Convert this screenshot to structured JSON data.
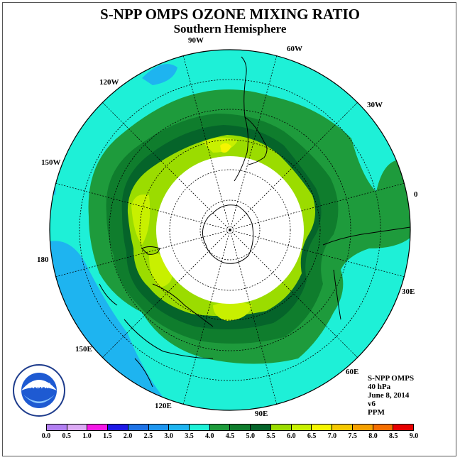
{
  "title": "S-NPP OMPS OZONE MIXING RATIO",
  "subtitle": "Southern Hemisphere",
  "longitude_labels": {
    "w90": "90W",
    "w60": "60W",
    "w30": "30W",
    "w120": "120W",
    "w150": "150W",
    "zero": "0",
    "lon180": "180",
    "e30": "30E",
    "e60": "60E",
    "e90": "90E",
    "e120": "120E",
    "e150": "150E"
  },
  "info": {
    "product": "S-NPP OMPS",
    "level": "40 hPa",
    "date": "June 8, 2014",
    "version": "v6",
    "units": "PPM"
  },
  "logo": {
    "text": "NOAA",
    "ring_text": "NATIONAL OCEANIC AND ATMOSPHERIC ADMINISTRATION · U.S. DEPARTMENT OF COMMERCE"
  },
  "colorbar": {
    "labels": [
      "0.0",
      "0.5",
      "1.0",
      "1.5",
      "2.0",
      "2.5",
      "3.0",
      "3.5",
      "4.0",
      "4.5",
      "5.0",
      "5.5",
      "6.0",
      "6.5",
      "7.0",
      "7.5",
      "8.0",
      "8.5",
      "9.0"
    ],
    "colors": [
      "#b27ff2",
      "#dcaaf5",
      "#f519e6",
      "#1e19e6",
      "#1e73e6",
      "#1e96f0",
      "#1eb4f0",
      "#1ef0d7",
      "#1e9b3c",
      "#0f7d2d",
      "#05642a",
      "#9bdc00",
      "#c8f000",
      "#f5f500",
      "#f5c800",
      "#f5a000",
      "#f56e00",
      "#e60000",
      "#8c5a3c"
    ]
  }
}
